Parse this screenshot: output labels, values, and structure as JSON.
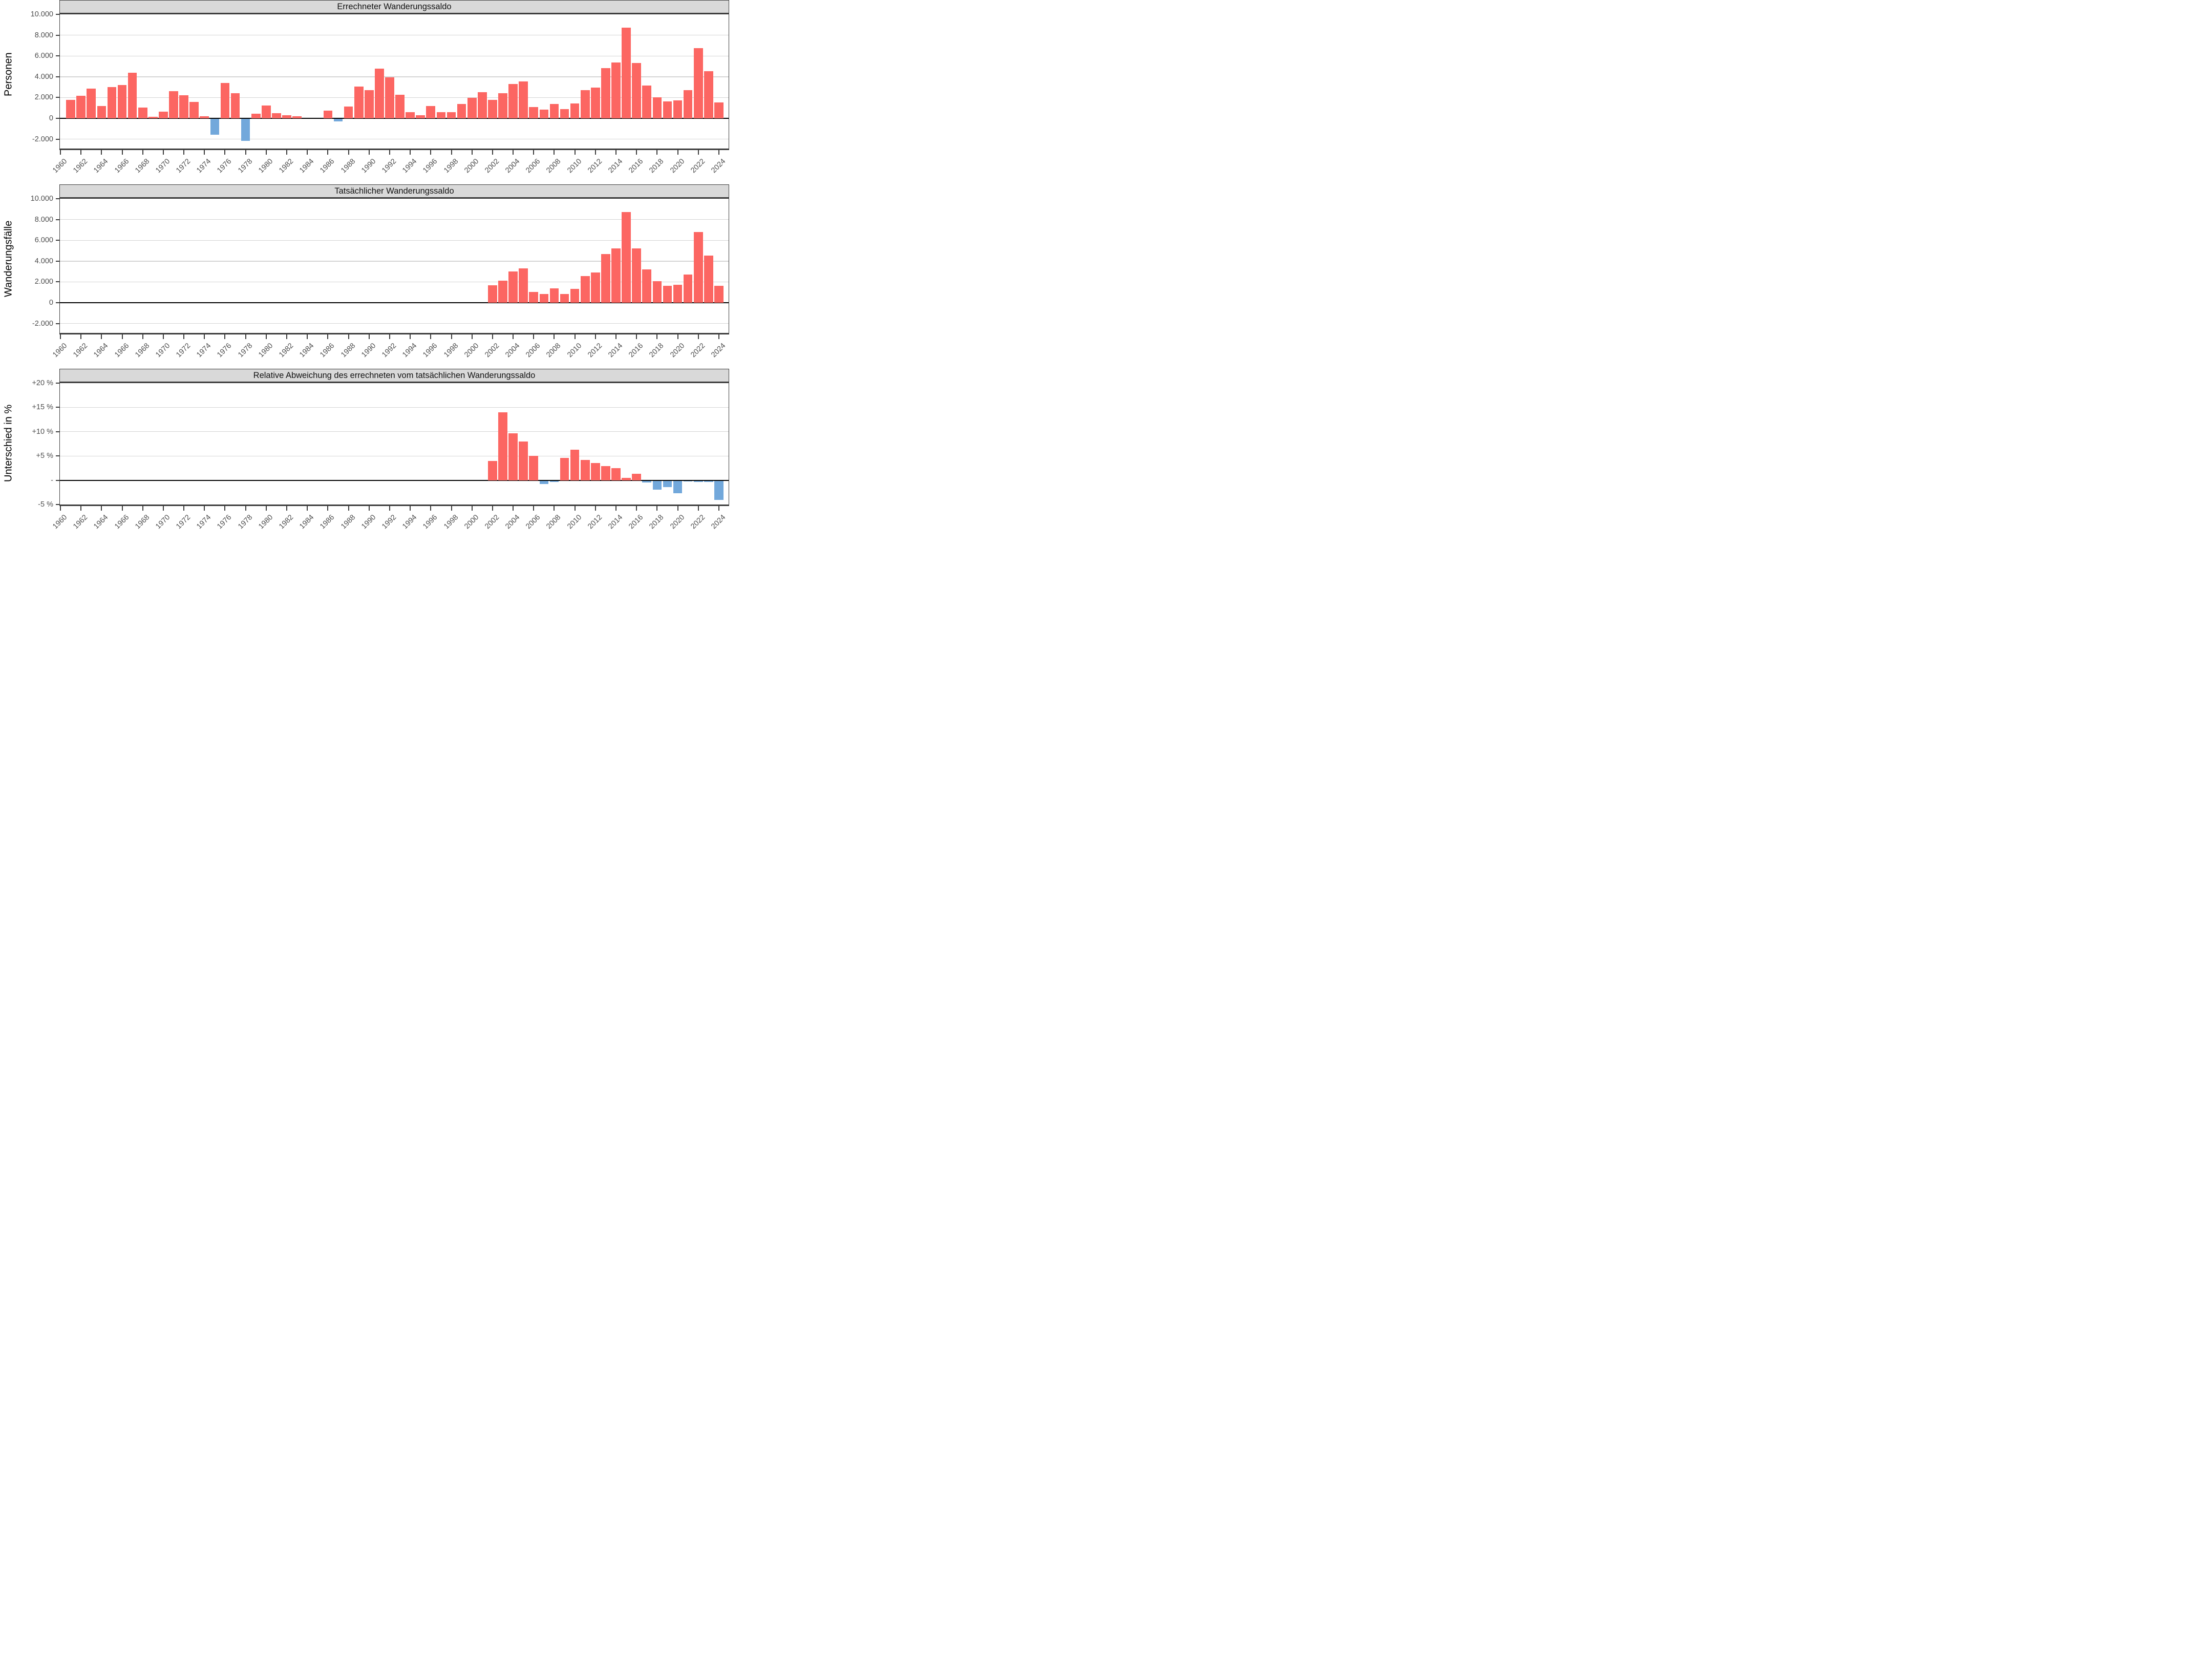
{
  "figure": {
    "kind": "three stacked bar panels, shared year axis 1960-2024",
    "positive_color": "#FC6662",
    "negative_color": "#72A8DB",
    "strip_bg": "#D9D9D9",
    "panel_border": "#3C3C3C",
    "grid_color": "#D5D5D5",
    "zero_line_color": "#000000",
    "tick_text_color": "#4D4D4D"
  },
  "chart_data": [
    {
      "type": "bar",
      "title": "Errechneter Wanderungssaldo",
      "ylabel": "Personen",
      "ylim": [
        -2900,
        10000
      ],
      "legend_position": "none",
      "grid": "horizontal",
      "yticks": [
        {
          "v": 10000,
          "label": "10.000"
        },
        {
          "v": 8000,
          "label": "8.000"
        },
        {
          "v": 6000,
          "label": "6.000"
        },
        {
          "v": 4000,
          "label": "4.000"
        },
        {
          "v": 2000,
          "label": "2.000"
        },
        {
          "v": 0,
          "label": "0"
        },
        {
          "v": -2000,
          "label": "-2.000"
        }
      ],
      "grid_vals": [
        8000,
        6000,
        4000,
        2000,
        -2000
      ],
      "xlim": [
        1959.95,
        2024.95
      ],
      "xticks": [
        1960,
        1962,
        1964,
        1966,
        1968,
        1970,
        1972,
        1974,
        1976,
        1978,
        1980,
        1982,
        1984,
        1986,
        1988,
        1990,
        1992,
        1994,
        1996,
        1998,
        2000,
        2002,
        2004,
        2006,
        2008,
        2010,
        2012,
        2014,
        2016,
        2018,
        2020,
        2022,
        2024
      ],
      "bar_width_years": 0.88,
      "points": [
        {
          "year": 1961,
          "value": 1800
        },
        {
          "year": 1962,
          "value": 2150
        },
        {
          "year": 1963,
          "value": 2850
        },
        {
          "year": 1964,
          "value": 1200
        },
        {
          "year": 1965,
          "value": 3000
        },
        {
          "year": 1966,
          "value": 3200
        },
        {
          "year": 1967,
          "value": 4400
        },
        {
          "year": 1968,
          "value": 1050
        },
        {
          "year": 1969,
          "value": 150
        },
        {
          "year": 1970,
          "value": 650
        },
        {
          "year": 1971,
          "value": 2600
        },
        {
          "year": 1972,
          "value": 2200
        },
        {
          "year": 1973,
          "value": 1600
        },
        {
          "year": 1974,
          "value": 200
        },
        {
          "year": 1975,
          "value": -1500
        },
        {
          "year": 1976,
          "value": 3400
        },
        {
          "year": 1977,
          "value": 2400
        },
        {
          "year": 1978,
          "value": -2100
        },
        {
          "year": 1979,
          "value": 450
        },
        {
          "year": 1980,
          "value": 1250
        },
        {
          "year": 1981,
          "value": 500
        },
        {
          "year": 1982,
          "value": 300
        },
        {
          "year": 1983,
          "value": 220
        },
        {
          "year": 1986,
          "value": 740
        },
        {
          "year": 1987,
          "value": -220
        },
        {
          "year": 1988,
          "value": 1150
        },
        {
          "year": 1989,
          "value": 3050
        },
        {
          "year": 1990,
          "value": 2700
        },
        {
          "year": 1991,
          "value": 4800
        },
        {
          "year": 1992,
          "value": 3950
        },
        {
          "year": 1993,
          "value": 2250
        },
        {
          "year": 1994,
          "value": 590
        },
        {
          "year": 1995,
          "value": 310
        },
        {
          "year": 1996,
          "value": 1200
        },
        {
          "year": 1997,
          "value": 580
        },
        {
          "year": 1998,
          "value": 600
        },
        {
          "year": 1999,
          "value": 1400
        },
        {
          "year": 2000,
          "value": 1950
        },
        {
          "year": 2001,
          "value": 2500
        },
        {
          "year": 2002,
          "value": 1800
        },
        {
          "year": 2003,
          "value": 2400
        },
        {
          "year": 2004,
          "value": 3300
        },
        {
          "year": 2005,
          "value": 3550
        },
        {
          "year": 2006,
          "value": 1100
        },
        {
          "year": 2007,
          "value": 850
        },
        {
          "year": 2008,
          "value": 1400
        },
        {
          "year": 2009,
          "value": 900
        },
        {
          "year": 2010,
          "value": 1450
        },
        {
          "year": 2011,
          "value": 2700
        },
        {
          "year": 2012,
          "value": 2950
        },
        {
          "year": 2013,
          "value": 4850
        },
        {
          "year": 2014,
          "value": 5350
        },
        {
          "year": 2015,
          "value": 8700
        },
        {
          "year": 2016,
          "value": 5300
        },
        {
          "year": 2017,
          "value": 3150
        },
        {
          "year": 2018,
          "value": 2000
        },
        {
          "year": 2019,
          "value": 1650
        },
        {
          "year": 2020,
          "value": 1750
        },
        {
          "year": 2021,
          "value": 2700
        },
        {
          "year": 2022,
          "value": 6750
        },
        {
          "year": 2023,
          "value": 4550
        },
        {
          "year": 2024,
          "value": 1550
        }
      ]
    },
    {
      "type": "bar",
      "title": "Tatsächlicher Wanderungssaldo",
      "ylabel": "Wanderungsfälle",
      "ylim": [
        -2900,
        10000
      ],
      "legend_position": "none",
      "grid": "horizontal",
      "yticks": [
        {
          "v": 10000,
          "label": "10.000"
        },
        {
          "v": 8000,
          "label": "8.000"
        },
        {
          "v": 6000,
          "label": "6.000"
        },
        {
          "v": 4000,
          "label": "4.000"
        },
        {
          "v": 2000,
          "label": "2.000"
        },
        {
          "v": 0,
          "label": "0"
        },
        {
          "v": -2000,
          "label": "-2.000"
        }
      ],
      "grid_vals": [
        8000,
        6000,
        4000,
        2000,
        -2000
      ],
      "xlim": [
        1959.95,
        2024.95
      ],
      "xticks": [
        1960,
        1962,
        1964,
        1966,
        1968,
        1970,
        1972,
        1974,
        1976,
        1978,
        1980,
        1982,
        1984,
        1986,
        1988,
        1990,
        1992,
        1994,
        1996,
        1998,
        2000,
        2002,
        2004,
        2006,
        2008,
        2010,
        2012,
        2014,
        2016,
        2018,
        2020,
        2022,
        2024
      ],
      "bar_width_years": 0.88,
      "points": [
        {
          "year": 2002,
          "value": 1700
        },
        {
          "year": 2003,
          "value": 2100
        },
        {
          "year": 2004,
          "value": 3000
        },
        {
          "year": 2005,
          "value": 3300
        },
        {
          "year": 2006,
          "value": 1050
        },
        {
          "year": 2007,
          "value": 830
        },
        {
          "year": 2008,
          "value": 1400
        },
        {
          "year": 2009,
          "value": 850
        },
        {
          "year": 2010,
          "value": 1350
        },
        {
          "year": 2011,
          "value": 2550
        },
        {
          "year": 2012,
          "value": 2900
        },
        {
          "year": 2013,
          "value": 4700
        },
        {
          "year": 2014,
          "value": 5200
        },
        {
          "year": 2015,
          "value": 8700
        },
        {
          "year": 2016,
          "value": 5200
        },
        {
          "year": 2017,
          "value": 3200
        },
        {
          "year": 2018,
          "value": 2050
        },
        {
          "year": 2019,
          "value": 1650
        },
        {
          "year": 2020,
          "value": 1750
        },
        {
          "year": 2021,
          "value": 2700
        },
        {
          "year": 2022,
          "value": 6800
        },
        {
          "year": 2023,
          "value": 4550
        },
        {
          "year": 2024,
          "value": 1650
        }
      ]
    },
    {
      "type": "bar",
      "title": "Relative Abweichung des errechneten vom tatsächlichen Wanderungssaldo",
      "ylabel": "Unterschied in %",
      "ylim": [
        -5,
        20
      ],
      "legend_position": "none",
      "grid": "horizontal",
      "yticks": [
        {
          "v": 20,
          "label": "+20 %"
        },
        {
          "v": 15,
          "label": "+15 %"
        },
        {
          "v": 10,
          "label": "+10 %"
        },
        {
          "v": 5,
          "label": "+5 %"
        },
        {
          "v": 0,
          "label": "-"
        },
        {
          "v": -5,
          "label": "-5 %"
        }
      ],
      "grid_vals": [
        15,
        10,
        5
      ],
      "xlim": [
        1959.95,
        2024.95
      ],
      "xticks": [
        1960,
        1962,
        1964,
        1966,
        1968,
        1970,
        1972,
        1974,
        1976,
        1978,
        1980,
        1982,
        1984,
        1986,
        1988,
        1990,
        1992,
        1994,
        1996,
        1998,
        2000,
        2002,
        2004,
        2006,
        2008,
        2010,
        2012,
        2014,
        2016,
        2018,
        2020,
        2022,
        2024
      ],
      "bar_width_years": 0.88,
      "points": [
        {
          "year": 2002,
          "value": 4.0
        },
        {
          "year": 2003,
          "value": 14.0
        },
        {
          "year": 2004,
          "value": 9.7
        },
        {
          "year": 2005,
          "value": 8.0
        },
        {
          "year": 2006,
          "value": 5.0
        },
        {
          "year": 2007,
          "value": -0.7
        },
        {
          "year": 2008,
          "value": -0.25
        },
        {
          "year": 2009,
          "value": 4.65
        },
        {
          "year": 2010,
          "value": 6.3
        },
        {
          "year": 2011,
          "value": 4.2
        },
        {
          "year": 2012,
          "value": 3.5
        },
        {
          "year": 2013,
          "value": 2.9
        },
        {
          "year": 2014,
          "value": 2.5
        },
        {
          "year": 2015,
          "value": 0.5
        },
        {
          "year": 2016,
          "value": 1.3
        },
        {
          "year": 2017,
          "value": -0.4
        },
        {
          "year": 2018,
          "value": -1.8
        },
        {
          "year": 2019,
          "value": -1.3
        },
        {
          "year": 2020,
          "value": -2.6
        },
        {
          "year": 2021,
          "value": -0.15
        },
        {
          "year": 2022,
          "value": -0.25
        },
        {
          "year": 2023,
          "value": -0.2
        },
        {
          "year": 2024,
          "value": -3.9
        }
      ]
    }
  ]
}
